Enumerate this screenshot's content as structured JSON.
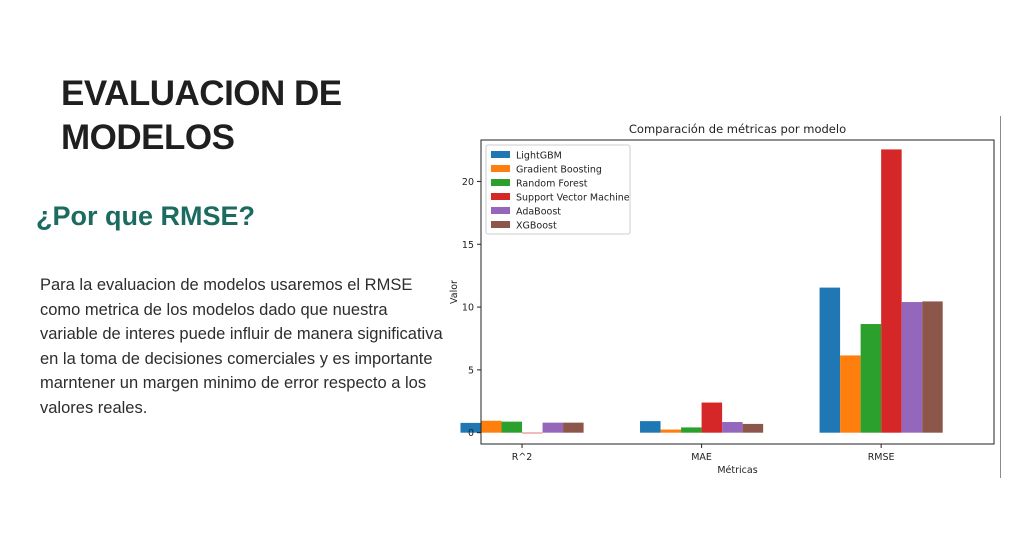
{
  "slide": {
    "title_lines": [
      "EVALUACION DE",
      "MODELOS"
    ],
    "subtitle": "¿Por que RMSE?",
    "paragraph": "Para la evaluacion de modelos usaremos el RMSE como metrica de los modelos dado que nuestra variable de interes puede influir de manera significativa en la toma de decisiones comerciales y es importante marntener un margen minimo de error respecto a los valores reales."
  },
  "chart_data": {
    "type": "bar",
    "title": "Comparación de métricas por modelo",
    "xlabel": "Métricas",
    "ylabel": "Valor",
    "categories": [
      "R^2",
      "MAE",
      "RMSE"
    ],
    "ylim": [
      -0.9,
      23.3
    ],
    "yticks": [
      0,
      5,
      10,
      15,
      20
    ],
    "grid": false,
    "legend": "top-left",
    "series": [
      {
        "name": "LightGBM",
        "color": "#1f77b4",
        "values": [
          0.78,
          0.92,
          11.55
        ]
      },
      {
        "name": "Gradient Boosting",
        "color": "#ff7f0e",
        "values": [
          0.95,
          0.25,
          6.15
        ]
      },
      {
        "name": "Random Forest",
        "color": "#2ca02c",
        "values": [
          0.88,
          0.42,
          8.65
        ]
      },
      {
        "name": "Support Vector Machine",
        "color": "#d62728",
        "values": [
          -0.05,
          2.4,
          22.55
        ]
      },
      {
        "name": "AdaBoost",
        "color": "#9467bd",
        "values": [
          0.8,
          0.85,
          10.4
        ]
      },
      {
        "name": "XGBoost",
        "color": "#8c564b",
        "values": [
          0.8,
          0.7,
          10.45
        ]
      }
    ]
  }
}
